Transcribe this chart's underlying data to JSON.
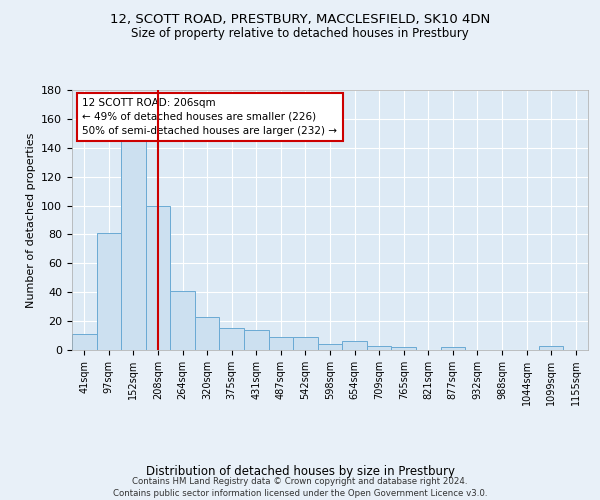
{
  "title": "12, SCOTT ROAD, PRESTBURY, MACCLESFIELD, SK10 4DN",
  "subtitle": "Size of property relative to detached houses in Prestbury",
  "xlabel": "Distribution of detached houses by size in Prestbury",
  "ylabel": "Number of detached properties",
  "bar_labels": [
    "41sqm",
    "97sqm",
    "152sqm",
    "208sqm",
    "264sqm",
    "320sqm",
    "375sqm",
    "431sqm",
    "487sqm",
    "542sqm",
    "598sqm",
    "654sqm",
    "709sqm",
    "765sqm",
    "821sqm",
    "877sqm",
    "932sqm",
    "988sqm",
    "1044sqm",
    "1099sqm",
    "1155sqm"
  ],
  "bar_values": [
    11,
    81,
    146,
    100,
    41,
    23,
    15,
    14,
    9,
    9,
    4,
    6,
    3,
    2,
    0,
    2,
    0,
    0,
    0,
    3,
    0
  ],
  "bar_color": "#cce0f0",
  "bar_edge_color": "#6aaad4",
  "ylim": [
    0,
    180
  ],
  "yticks": [
    0,
    20,
    40,
    60,
    80,
    100,
    120,
    140,
    160,
    180
  ],
  "vline_x_index": 3,
  "vline_color": "#cc0000",
  "annotation_text": "12 SCOTT ROAD: 206sqm\n← 49% of detached houses are smaller (226)\n50% of semi-detached houses are larger (232) →",
  "footer_text": "Contains HM Land Registry data © Crown copyright and database right 2024.\nContains public sector information licensed under the Open Government Licence v3.0.",
  "bg_color": "#e8f0f8",
  "plot_bg_color": "#ddeaf5",
  "grid_color": "#ffffff"
}
